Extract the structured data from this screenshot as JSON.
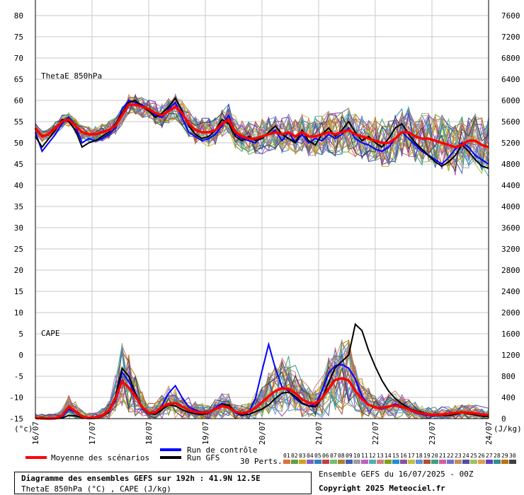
{
  "chart_data": {
    "type": "line",
    "left_axis": {
      "min": -15,
      "max": 80,
      "step": 5,
      "ticks": [
        80,
        75,
        70,
        65,
        60,
        55,
        50,
        45,
        40,
        35,
        30,
        25,
        20,
        15,
        10,
        5,
        0,
        -5,
        -10,
        -15
      ],
      "unit": "(°c)"
    },
    "right_axis": {
      "min": 0,
      "max": 7600,
      "step": 400,
      "ticks": [
        7600,
        7200,
        6800,
        6400,
        6000,
        5600,
        5200,
        4800,
        4400,
        4000,
        3600,
        3200,
        2800,
        2400,
        2000,
        1600,
        1200,
        800,
        400,
        0
      ],
      "unit": "(J/kg)"
    },
    "x_dates": [
      "16/07",
      "17/07",
      "18/07",
      "19/07",
      "20/07",
      "21/07",
      "22/07",
      "23/07",
      "24/07"
    ],
    "x_start_label": "16/07",
    "panel_labels": {
      "thetae": "ThetaE 850hPa",
      "cape": "CAPE"
    },
    "thetae_mean": [
      53.5,
      51.5,
      52.0,
      53.5,
      55.0,
      55.5,
      54.0,
      52.5,
      52.0,
      52.0,
      52.5,
      53.0,
      54.0,
      56.5,
      59.0,
      59.0,
      58.5,
      58.0,
      57.0,
      56.5,
      57.5,
      58.5,
      57.0,
      54.5,
      53.0,
      52.5,
      52.5,
      53.0,
      54.5,
      55.5,
      52.5,
      51.5,
      51.0,
      51.0,
      51.5,
      52.0,
      52.5,
      52.0,
      52.5,
      51.5,
      52.5,
      51.5,
      51.5,
      52.0,
      52.5,
      52.0,
      52.5,
      53.0,
      52.0,
      51.5,
      51.0,
      50.5,
      50.0,
      50.0,
      51.0,
      52.5,
      52.5,
      51.5,
      51.0,
      51.0,
      50.5,
      50.0,
      49.5,
      49.0,
      49.5,
      50.5,
      50.5,
      49.5,
      49.0
    ],
    "thetae_control": [
      52.5,
      48.0,
      50.0,
      52.0,
      54.5,
      56.0,
      54.0,
      50.0,
      51.0,
      50.5,
      51.0,
      52.0,
      53.5,
      58.0,
      60.0,
      59.5,
      59.0,
      57.5,
      56.5,
      56.0,
      58.0,
      59.5,
      56.0,
      52.5,
      51.5,
      50.5,
      51.0,
      52.0,
      54.0,
      56.5,
      52.0,
      51.0,
      50.5,
      50.0,
      51.5,
      52.0,
      53.0,
      50.5,
      52.5,
      50.0,
      52.0,
      50.0,
      51.0,
      50.5,
      52.0,
      51.0,
      52.0,
      53.5,
      51.0,
      50.0,
      49.5,
      48.5,
      48.0,
      49.0,
      51.0,
      52.5,
      51.0,
      49.5,
      48.0,
      47.0,
      46.0,
      45.0,
      46.5,
      48.5,
      50.0,
      49.0,
      47.0,
      46.0,
      45.0
    ],
    "thetae_gfs": [
      51.5,
      49.0,
      51.0,
      53.0,
      55.5,
      55.0,
      53.0,
      49.0,
      50.0,
      50.5,
      51.5,
      52.5,
      54.5,
      57.0,
      59.5,
      60.0,
      58.5,
      57.5,
      56.0,
      57.0,
      58.5,
      60.5,
      57.5,
      54.0,
      52.0,
      51.0,
      51.5,
      53.0,
      55.5,
      54.5,
      51.5,
      50.5,
      51.5,
      50.5,
      51.0,
      52.5,
      54.0,
      52.0,
      51.0,
      50.0,
      53.0,
      50.5,
      49.5,
      52.0,
      53.5,
      51.5,
      53.0,
      55.0,
      52.5,
      50.5,
      51.5,
      50.0,
      49.0,
      51.0,
      53.5,
      54.5,
      52.0,
      50.0,
      48.5,
      47.0,
      45.5,
      44.5,
      45.5,
      47.0,
      49.5,
      48.0,
      46.0,
      44.5,
      44.0
    ],
    "cape_mean": [
      10,
      5,
      0,
      5,
      60,
      220,
      140,
      40,
      10,
      20,
      60,
      150,
      380,
      700,
      590,
      420,
      220,
      110,
      120,
      220,
      280,
      290,
      230,
      160,
      130,
      110,
      120,
      180,
      240,
      210,
      130,
      100,
      130,
      200,
      310,
      420,
      520,
      570,
      560,
      480,
      360,
      300,
      280,
      380,
      570,
      730,
      760,
      720,
      520,
      370,
      260,
      210,
      200,
      230,
      250,
      220,
      180,
      130,
      100,
      80,
      70,
      80,
      90,
      110,
      120,
      110,
      100,
      80,
      70
    ],
    "cape_control": [
      5,
      0,
      0,
      0,
      30,
      180,
      120,
      30,
      5,
      15,
      50,
      130,
      340,
      880,
      700,
      450,
      200,
      90,
      100,
      250,
      480,
      620,
      400,
      220,
      160,
      120,
      130,
      200,
      290,
      240,
      110,
      60,
      120,
      380,
      900,
      1400,
      950,
      600,
      520,
      380,
      280,
      240,
      260,
      520,
      860,
      1000,
      1020,
      950,
      750,
      420,
      260,
      200,
      180,
      220,
      280,
      230,
      170,
      110,
      80,
      60,
      50,
      70,
      90,
      120,
      130,
      110,
      90,
      70,
      60
    ],
    "cape_gfs": [
      0,
      0,
      0,
      0,
      10,
      60,
      50,
      20,
      0,
      5,
      40,
      120,
      420,
      950,
      800,
      480,
      210,
      100,
      80,
      170,
      260,
      240,
      170,
      120,
      90,
      80,
      100,
      180,
      260,
      260,
      120,
      70,
      80,
      130,
      180,
      260,
      380,
      480,
      500,
      420,
      300,
      240,
      220,
      380,
      680,
      960,
      1080,
      1200,
      1780,
      1660,
      1280,
      980,
      720,
      520,
      380,
      280,
      200,
      150,
      120,
      90,
      70,
      60,
      60,
      80,
      110,
      90,
      70,
      50,
      40
    ],
    "series_colors": [
      "#e07040",
      "#60a040",
      "#d0a020",
      "#8060c0",
      "#3080c0",
      "#c04040",
      "#70c070",
      "#b08030",
      "#4060b0",
      "#a0a0a0",
      "#c060c0",
      "#50b0b0",
      "#d08080",
      "#80a020",
      "#2090d0",
      "#9050a0",
      "#c0c040",
      "#6090e0",
      "#b05030",
      "#40a080",
      "#d060a0",
      "#7070d0",
      "#c09060",
      "#5050a0",
      "#a0c060",
      "#e0a050",
      "#6040c0",
      "#309090",
      "#c07010",
      "#404040"
    ],
    "legend": {
      "mean_label": "Moyenne des scénarios",
      "control_label": "Run de contrôle",
      "gfs_label": "Run GFS",
      "perts_label": "30 Perts.",
      "pert_numbers": [
        "01",
        "02",
        "03",
        "04",
        "05",
        "06",
        "07",
        "08",
        "09",
        "10",
        "11",
        "12",
        "13",
        "14",
        "15",
        "16",
        "17",
        "18",
        "19",
        "20",
        "21",
        "22",
        "23",
        "24",
        "25",
        "26",
        "27",
        "28",
        "29",
        "30"
      ],
      "mean_color": "#ff0000",
      "control_color": "#0000ff",
      "gfs_color": "#000000"
    }
  },
  "footer": {
    "title": "Diagramme des ensembles GEFS sur 192h : 41.9N 12.5E",
    "subtitle": "ThetaE 850hPa (°C) , CAPE (J/kg)",
    "run": "Ensemble GEFS du 16/07/2025 - 00Z",
    "copyright": "Copyright 2025 Meteociel.fr"
  }
}
